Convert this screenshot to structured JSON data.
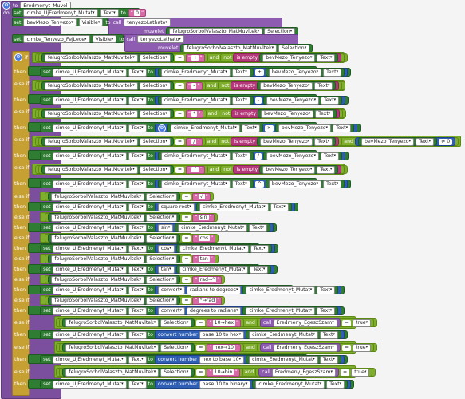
{
  "proc": {
    "to": "to",
    "name": "Eredmenyt_Muvel",
    "do": "do"
  },
  "top": [
    {
      "set": "set",
      "comp": "cimke_UjEredmenyt_Mutat",
      "prop": "Text",
      "to": "to",
      "str": "0"
    },
    {
      "set": "set",
      "comp": "bevMezo_Tenyezo",
      "prop": "Visible",
      "to": "to",
      "call": "call",
      "proc": "tenyezoLathato",
      "arg": "muvelet",
      "argcomp": "felugroSorbolValaszto_MatMuvltek",
      "argprop": "Selection"
    },
    {
      "set": "set",
      "comp": "cimke_Tenyezo_FejLece",
      "prop": "Visible",
      "to": "to",
      "call": "call",
      "proc": "tenyezoLathato",
      "arg": "muvelet",
      "argcomp": "felugroSorbolValaszto_MatMuvltek",
      "argprop": "Selection"
    }
  ],
  "labels": {
    "if": "if",
    "then": "then",
    "elseif": "else if",
    "set": "set",
    "to": "to",
    "and": "and",
    "not": "not",
    "isempty": "is empty",
    "eq": "=",
    "call": "call"
  },
  "cond": {
    "comp": "felugroSorbolValaszto_MatMuvltek",
    "prop": "Selection",
    "tenyezo": "bevMezo_Tenyezo",
    "text": "Text"
  },
  "target": {
    "comp": "cimke_UjEredmenyt_Mutat",
    "prop": "Text",
    "src": "cimke_Eredmenyt_Mutat"
  },
  "branches": [
    {
      "kw": "if",
      "sym": "+",
      "op": "+"
    },
    {
      "kw": "else if",
      "sym": "-",
      "op": "-"
    },
    {
      "kw": "else if",
      "sym": "*",
      "op": "×"
    },
    {
      "kw": "else if",
      "sym": "/",
      "op": "/",
      "extra": "≠ 0"
    },
    {
      "kw": "else if",
      "sym": "^",
      "op": "^"
    }
  ],
  "fn_branches": [
    {
      "sym": "√",
      "fn": "square root"
    },
    {
      "sym": "sin",
      "fn": "sin"
    },
    {
      "sym": "cos",
      "fn": "cos"
    },
    {
      "sym": "tan",
      "fn": "tan"
    },
    {
      "sym": "rad→°",
      "fn": "convert",
      "fn2": "radians to degrees"
    },
    {
      "sym": "°→rad",
      "fn": "convert",
      "fn2": "degrees to radians"
    }
  ],
  "conv_branches": [
    {
      "sym": "10→hex",
      "fn": "convert number",
      "fn2": "base 10 to hex",
      "call": "Eredmeny_EgeszSzam",
      "val": "true"
    },
    {
      "sym": "hex→10",
      "fn": "convert number",
      "fn2": "hex to base 10",
      "call": "Eredmeny_EgeszSzam",
      "val": "true"
    },
    {
      "sym": "10→bin",
      "fn": "convert number",
      "fn2": "base 10 to binary",
      "call": "Eredmeny_EgeszSzam",
      "val": "true"
    }
  ]
}
